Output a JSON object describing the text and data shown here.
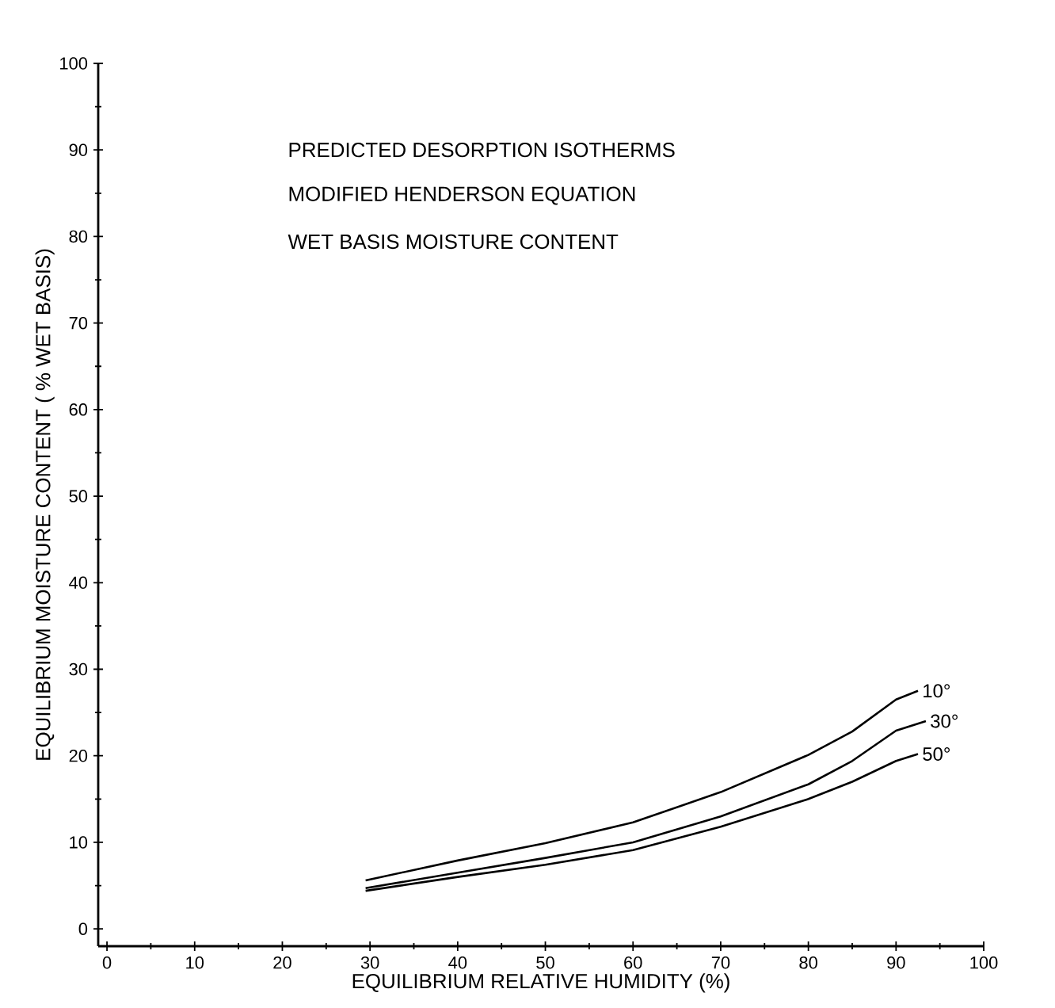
{
  "chart_data": {
    "type": "line",
    "xlabel": "EQUILIBRIUM RELATIVE HUMIDITY (%)",
    "ylabel": "EQUILIBRIUM MOISTURE CONTENT ( % WET BASIS)",
    "annotations": [
      "PREDICTED DESORPTION ISOTHERMS",
      "MODIFIED HENDERSON EQUATION",
      "WET BASIS MOISTURE CONTENT"
    ],
    "xlim": [
      -1,
      100
    ],
    "ylim": [
      -2,
      100
    ],
    "xticks": [
      0,
      10,
      20,
      30,
      40,
      50,
      60,
      70,
      80,
      90,
      100
    ],
    "yticks": [
      0,
      10,
      20,
      30,
      40,
      50,
      60,
      70,
      80,
      90,
      100
    ],
    "grid": false,
    "legend": false,
    "marker": "none",
    "line_style": "solid",
    "series": [
      {
        "name": "10°",
        "color": "#000000",
        "x": [
          29.5,
          40,
          50,
          60,
          70,
          80,
          85,
          90,
          92.5
        ],
        "values": [
          5.6,
          7.9,
          9.9,
          12.3,
          15.8,
          20.1,
          22.8,
          26.5,
          27.5
        ]
      },
      {
        "name": "30°",
        "color": "#000000",
        "x": [
          29.5,
          40,
          50,
          60,
          70,
          80,
          85,
          90,
          93.4
        ],
        "values": [
          4.7,
          6.5,
          8.2,
          10.0,
          13.0,
          16.7,
          19.4,
          22.9,
          24.0
        ]
      },
      {
        "name": "50°",
        "color": "#000000",
        "x": [
          29.5,
          40,
          50,
          60,
          70,
          80,
          85,
          90,
          92.5
        ],
        "values": [
          4.4,
          6.0,
          7.4,
          9.1,
          11.8,
          15.0,
          17.0,
          19.4,
          20.2
        ]
      }
    ]
  }
}
